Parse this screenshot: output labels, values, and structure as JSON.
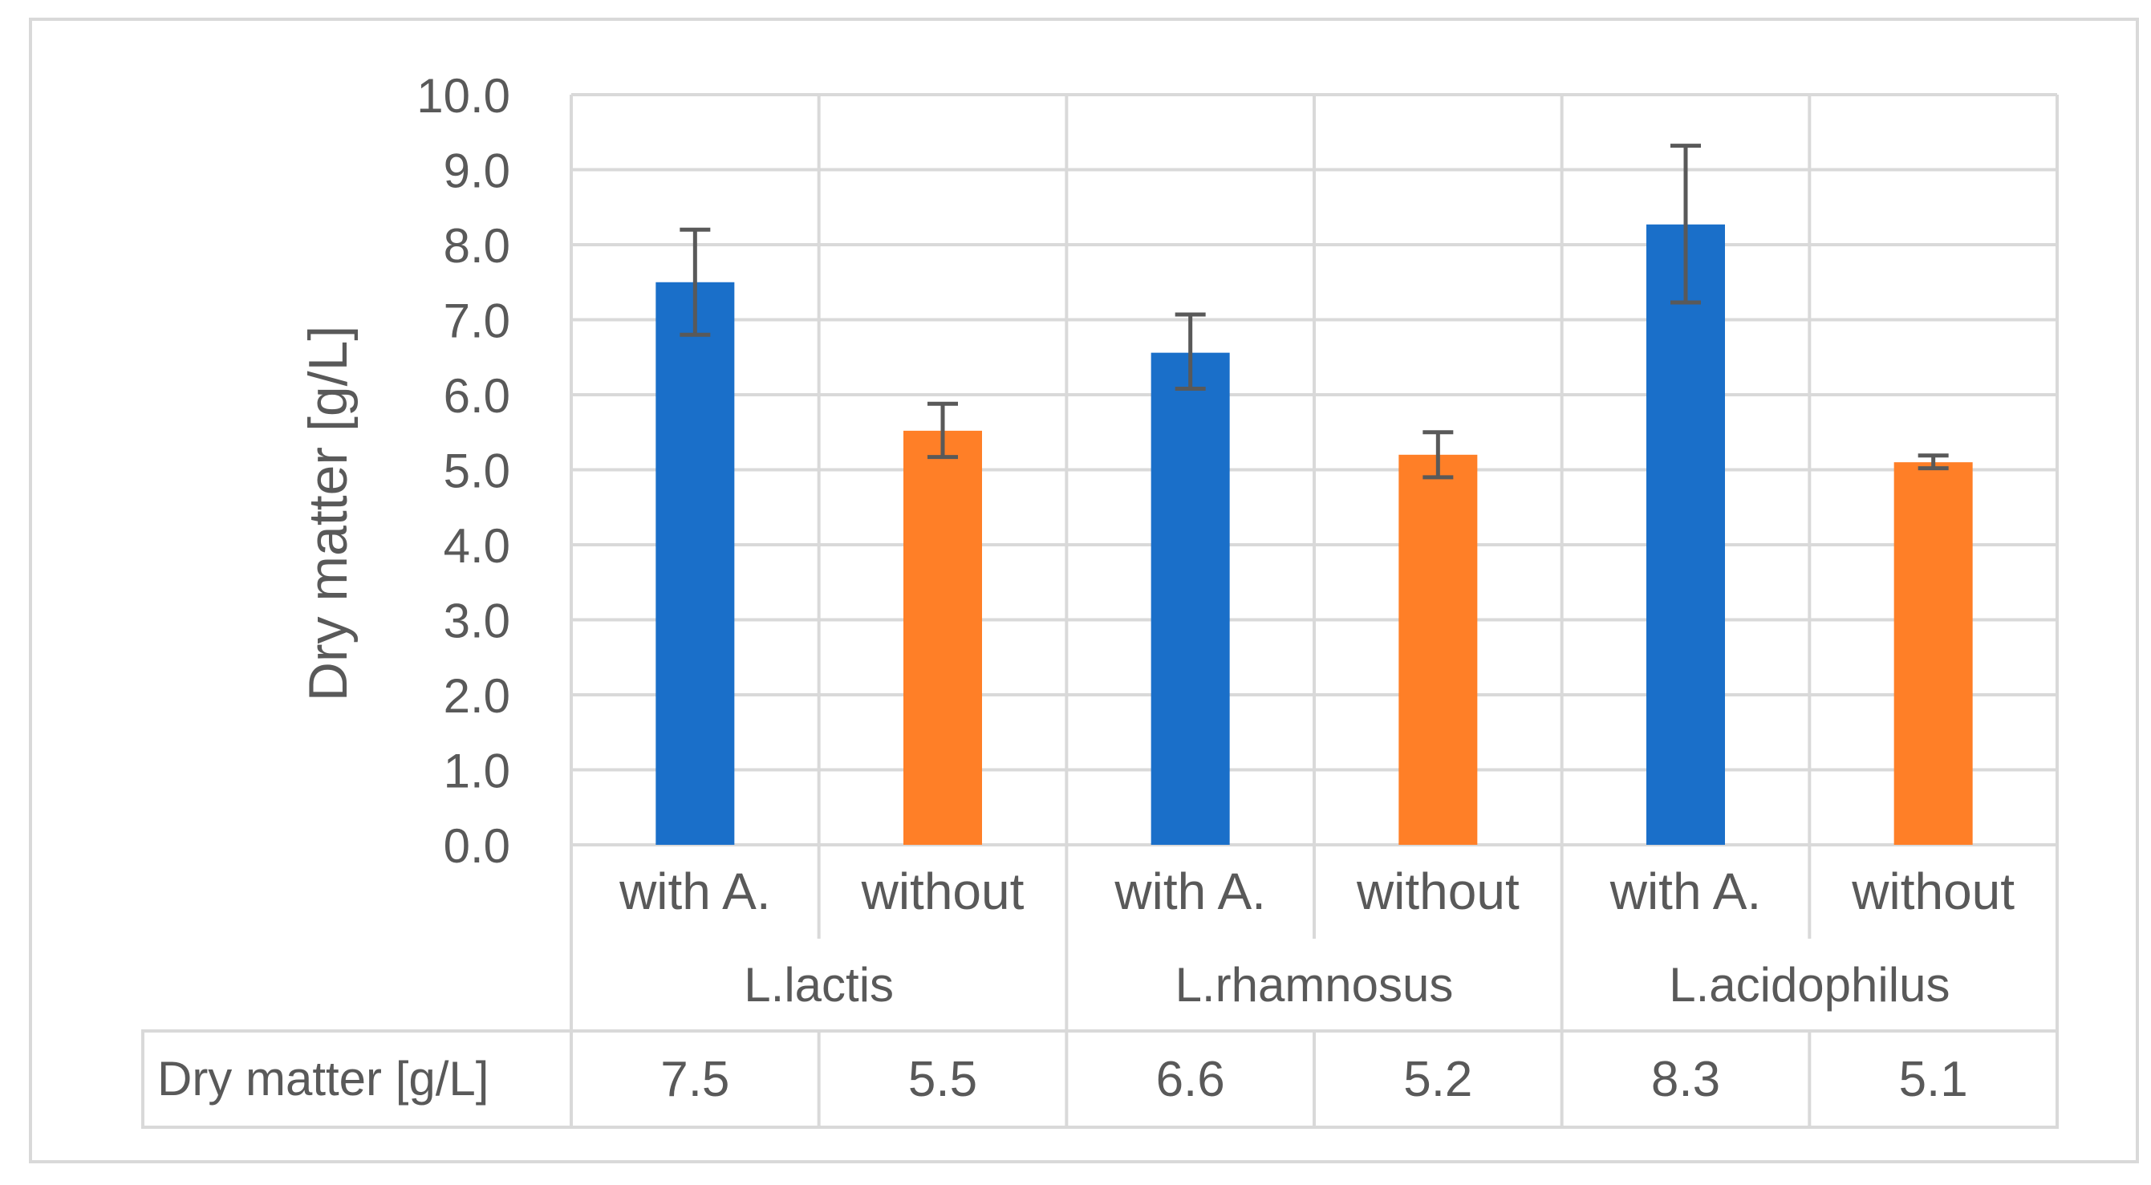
{
  "chart_data": {
    "type": "bar",
    "title": "",
    "ylabel": "Dry matter [g/L]",
    "xlabel": "",
    "ylim": [
      0,
      10
    ],
    "ytick_step": 1,
    "ytick_labels": [
      "0.0",
      "1.0",
      "2.0",
      "3.0",
      "4.0",
      "5.0",
      "6.0",
      "7.0",
      "8.0",
      "9.0",
      "10.0"
    ],
    "grid": true,
    "groups": [
      {
        "name": "L.lactis",
        "categories": [
          "with A.",
          "without"
        ]
      },
      {
        "name": "L.rhamnosus",
        "categories": [
          "with A.",
          "without"
        ]
      },
      {
        "name": "L.acidophilus",
        "categories": [
          "with A.",
          "without"
        ]
      }
    ],
    "categories": [
      "with A.",
      "without",
      "with A.",
      "without",
      "with A.",
      "without"
    ],
    "values": [
      7.5,
      5.5,
      6.6,
      5.2,
      8.3,
      5.1
    ],
    "plot_values": [
      7.5,
      5.52,
      6.56,
      5.2,
      8.27,
      5.1
    ],
    "error_low": [
      6.8,
      5.17,
      6.08,
      4.9,
      7.23,
      5.02
    ],
    "error_high": [
      8.2,
      5.88,
      7.07,
      5.5,
      9.32,
      5.19
    ],
    "colors": [
      "#1A6FC9",
      "#FF7F27",
      "#1A6FC9",
      "#FF7F27",
      "#1A6FC9",
      "#FF7F27"
    ],
    "data_table": {
      "row_label": "Dry matter [g/L]",
      "values": [
        "7.5",
        "5.5",
        "6.6",
        "5.2",
        "8.3",
        "5.1"
      ]
    }
  }
}
